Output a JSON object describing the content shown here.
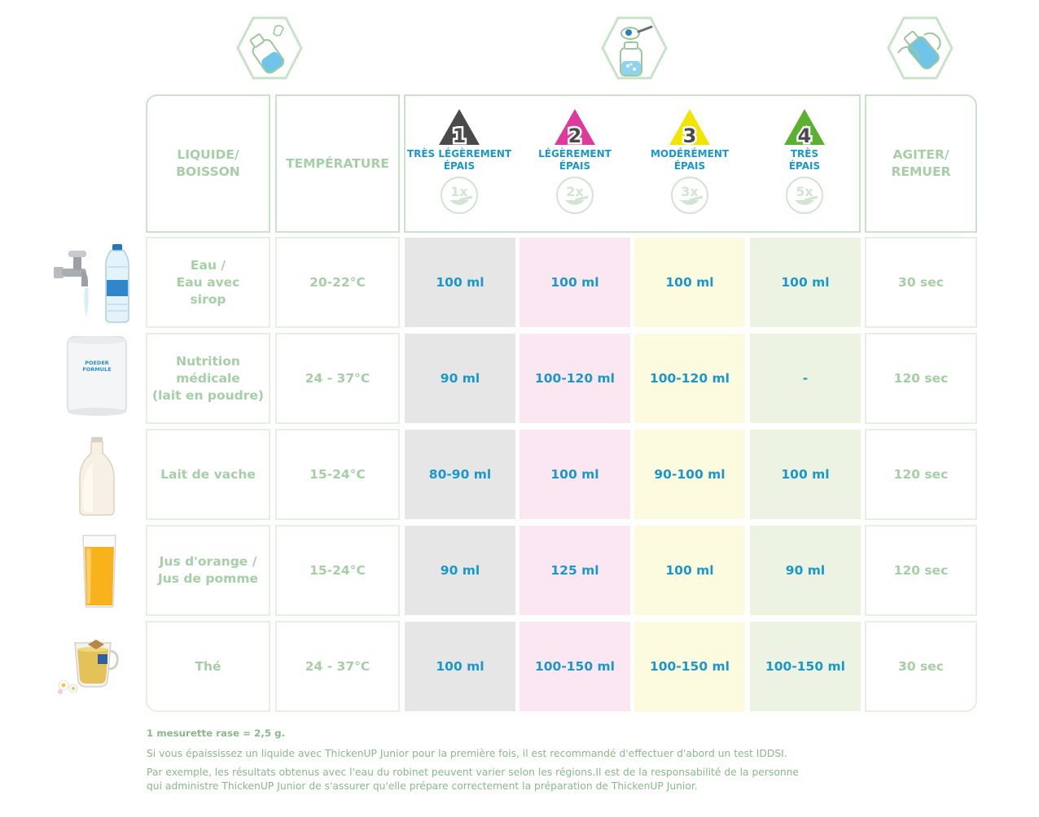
{
  "headers": {
    "liquid": [
      "LIQUIDE/",
      "BOISSON"
    ],
    "temperature": "TEMPÉRATURE",
    "stir": [
      "AGITER/",
      "REMUER"
    ]
  },
  "levels": [
    {
      "number": "1",
      "label": [
        "TRÈS LÉGÈREMENT",
        "ÉPAIS"
      ],
      "scoops": "1x",
      "color": "#4a4a4a"
    },
    {
      "number": "2",
      "label": [
        "LÉGÈREMENT",
        "ÉPAIS"
      ],
      "scoops": "2x",
      "color": "#e0389b"
    },
    {
      "number": "3",
      "label": [
        "MODÉRÉMENT",
        "ÉPAIS"
      ],
      "scoops": "3x",
      "color": "#f2e600"
    },
    {
      "number": "4",
      "label": [
        "TRÈS",
        "ÉPAIS"
      ],
      "scoops": "5x",
      "color": "#5bb030"
    }
  ],
  "rows": [
    {
      "liquid": [
        "Eau /",
        "Eau avec",
        "sirop"
      ],
      "temperature": "20-22°C",
      "values": [
        "100 ml",
        "100 ml",
        "100 ml",
        "100 ml"
      ],
      "stir": "30 sec",
      "image": "tap-and-bottle"
    },
    {
      "liquid": [
        "Nutrition",
        "médicale",
        "(lait en poudre)"
      ],
      "temperature": "24 - 37°C",
      "values": [
        "90 ml",
        "100-120 ml",
        "100-120 ml",
        "-"
      ],
      "stir": "120 sec",
      "image": "powder-tin",
      "image_text": [
        "POEDER",
        "FORMULE"
      ]
    },
    {
      "liquid": [
        "Lait de vache"
      ],
      "temperature": "15-24°C",
      "values": [
        "80-90 ml",
        "100 ml",
        "90-100 ml",
        "100 ml"
      ],
      "stir": "120 sec",
      "image": "milk-bottle"
    },
    {
      "liquid": [
        "Jus d'orange /",
        "Jus de pomme"
      ],
      "temperature": "15-24°C",
      "values": [
        "90 ml",
        "125 ml",
        "100 ml",
        "90 ml"
      ],
      "stir": "120 sec",
      "image": "juice-glass"
    },
    {
      "liquid": [
        "Thé"
      ],
      "temperature": "24 - 37°C",
      "values": [
        "100 ml",
        "100-150 ml",
        "100-150 ml",
        "100-150 ml"
      ],
      "stir": "30 sec",
      "image": "tea-cup"
    }
  ],
  "footnotes": {
    "line1": "1 mesurette rase = 2,5 g.",
    "line2": "Si vous épaississez un liquide avec ThickenUP Junior pour la première fois, il est recommandé d'effectuer d'abord un test IDDSI.",
    "line3": "Par exemple, les résultats obtenus avec l'eau du robinet peuvent varier selon les régions.Il est de la responsabilité de la personne",
    "line4": "qui administre ThickenUP Junior de s'assurer qu'elle prépare correctement la préparation de ThickenUP Junior."
  },
  "colors": {
    "accent_green": "#a6cfa6",
    "value_blue": "#1b98c9"
  }
}
